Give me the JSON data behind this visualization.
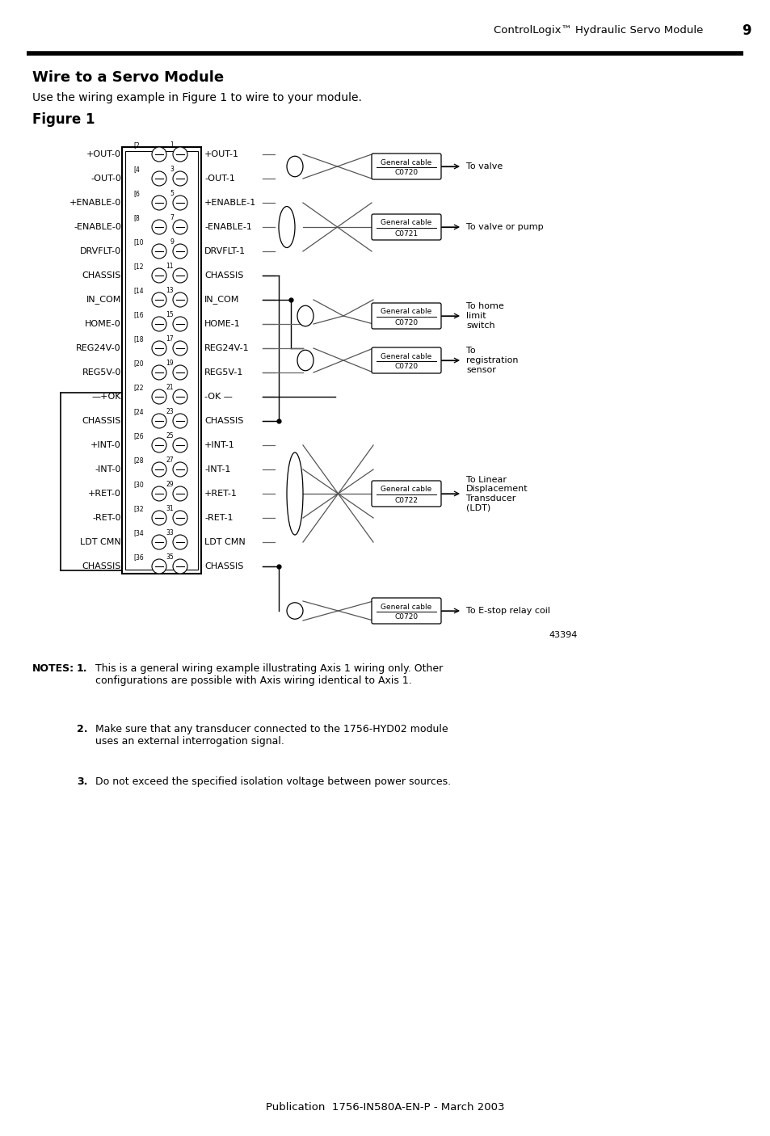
{
  "page_title": "ControlLogix™ Hydraulic Servo Module",
  "page_number": "9",
  "section_title": "Wire to a Servo Module",
  "intro_text": "Use the wiring example in Figure 1 to wire to your module.",
  "figure_label": "Figure 1",
  "figure_number": "43394",
  "left_labels": [
    "+OUT-0",
    "-OUT-0",
    "+ENABLE-0",
    "-ENABLE-0",
    "DRVFLT-0",
    "CHASSIS",
    "IN_COM",
    "HOME-0",
    "REG24V-0",
    "REG5V-0",
    "—+OK",
    "CHASSIS",
    "+INT-0",
    "-INT-0",
    "+RET-0",
    "-RET-0",
    "LDT CMN",
    "CHASSIS"
  ],
  "left_pins": [
    "2",
    "4",
    "6",
    "8",
    "10",
    "12",
    "14",
    "16",
    "18",
    "20",
    "22",
    "24",
    "26",
    "28",
    "30",
    "32",
    "34",
    "36"
  ],
  "right_pins": [
    "1",
    "3",
    "5",
    "7",
    "9",
    "11",
    "13",
    "15",
    "17",
    "19",
    "21",
    "23",
    "25",
    "27",
    "29",
    "31",
    "33",
    "35"
  ],
  "right_labels": [
    "+OUT-1",
    "-OUT-1",
    "+ENABLE-1",
    "-ENABLE-1",
    "DRVFLT-1",
    "CHASSIS",
    "IN_COM",
    "HOME-1",
    "REG24V-1",
    "REG5V-1",
    "-OK —",
    "CHASSIS",
    "+INT-1",
    "-INT-1",
    "+RET-1",
    "-RET-1",
    "LDT CMN",
    "CHASSIS"
  ],
  "notes_label": "NOTES:",
  "notes": [
    [
      "1.",
      "This is a general wiring example illustrating Axis 1 wiring only. Other\nconfigurations are possible with Axis wiring identical to Axis 1."
    ],
    [
      "2.",
      "Make sure that any transducer connected to the 1756-HYD02 module\nuses an external interrogation signal."
    ],
    [
      "3.",
      "Do not exceed the specified isolation voltage between power sources."
    ]
  ],
  "footer": "Publication  1756-IN580A-EN-P - March 2003",
  "bg_color": "#ffffff",
  "text_color": "#000000"
}
